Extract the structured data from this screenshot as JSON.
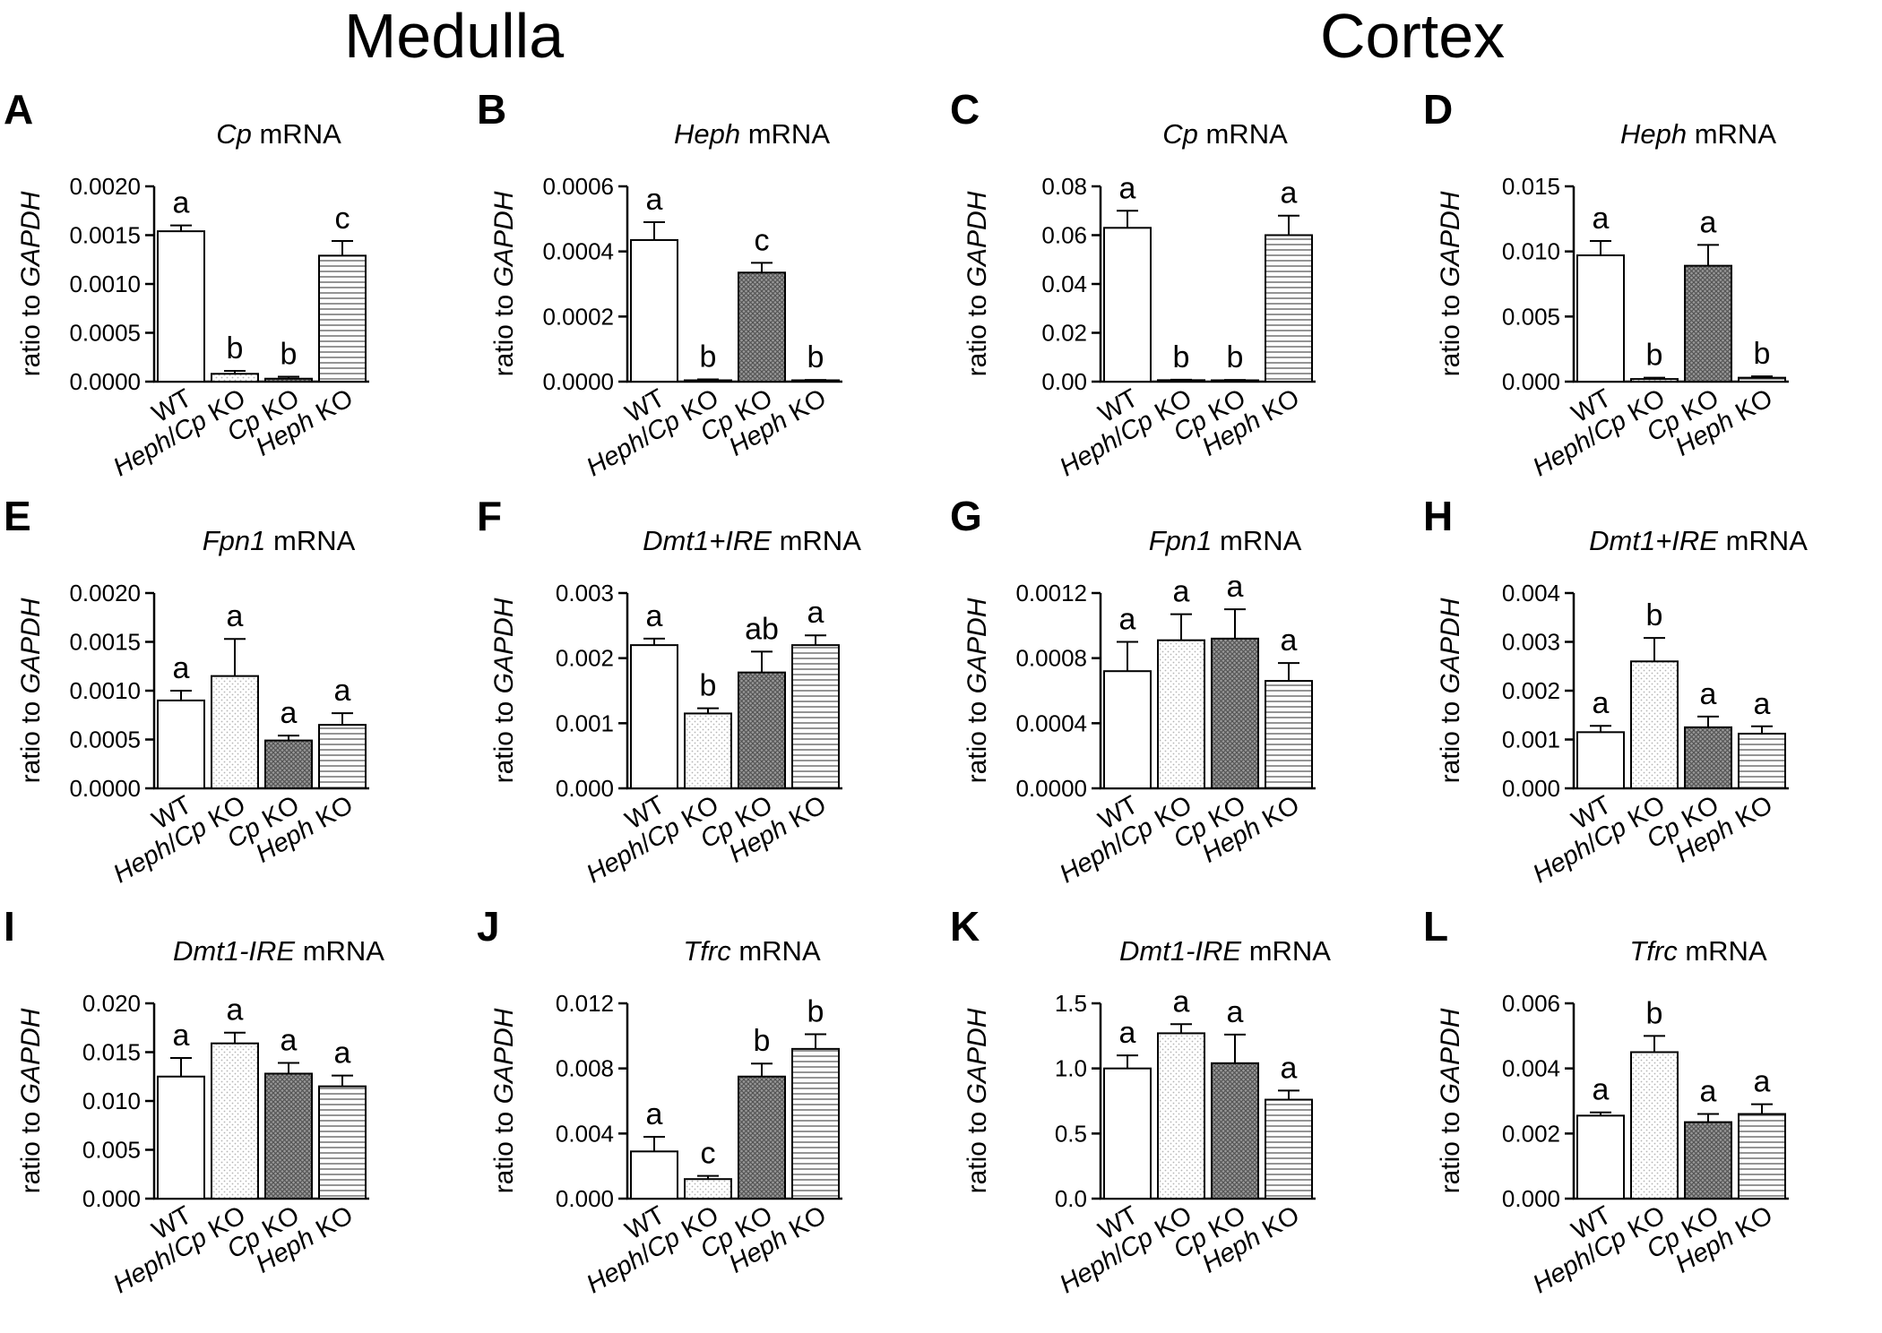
{
  "sections": [
    "Medulla",
    "Cortex"
  ],
  "y_label_prefix": "ratio to ",
  "y_label_gene": "GAPDH",
  "categories": [
    {
      "parts": [
        {
          "t": "WT",
          "i": false
        }
      ]
    },
    {
      "parts": [
        {
          "t": "Heph",
          "i": true
        },
        {
          "t": "/",
          "i": false
        },
        {
          "t": "Cp",
          "i": true
        },
        {
          "t": " KO",
          "i": false
        }
      ]
    },
    {
      "parts": [
        {
          "t": "Cp",
          "i": true
        },
        {
          "t": " KO",
          "i": false
        }
      ]
    },
    {
      "parts": [
        {
          "t": "Heph",
          "i": true
        },
        {
          "t": " KO",
          "i": false
        }
      ]
    }
  ],
  "colors": {
    "axis": "#000000",
    "bar_fill": "#ffffff",
    "dots_fill": "#b5b5b5",
    "dark_fill": "#555555",
    "hatch": "#666666"
  },
  "chart_data": [
    {
      "type": "bar",
      "panel": "A",
      "title_gene": "Cp",
      "title_suffix": " mRNA",
      "ylim": [
        0,
        0.002
      ],
      "ticks": [
        "0.0000",
        "0.0005",
        "0.0010",
        "0.0015",
        "0.0020"
      ],
      "values": [
        0.00154,
        8e-05,
        3e-05,
        0.00129
      ],
      "errors": [
        6e-05,
        3e-05,
        2e-05,
        0.00015
      ],
      "letters": [
        "a",
        "b",
        "b",
        "c"
      ]
    },
    {
      "type": "bar",
      "panel": "B",
      "title_gene": "Heph",
      "title_suffix": " mRNA",
      "ylim": [
        0,
        0.0006
      ],
      "ticks": [
        "0.0000",
        "0.0002",
        "0.0004",
        "0.0006"
      ],
      "values": [
        0.000435,
        4e-06,
        0.000335,
        3e-06
      ],
      "errors": [
        5.5e-05,
        3e-06,
        3e-05,
        2e-06
      ],
      "letters": [
        "a",
        "b",
        "c",
        "b"
      ]
    },
    {
      "type": "bar",
      "panel": "C",
      "title_gene": "Cp",
      "title_suffix": " mRNA",
      "ylim": [
        0,
        0.08
      ],
      "ticks": [
        "0.00",
        "0.02",
        "0.04",
        "0.06",
        "0.08"
      ],
      "values": [
        0.063,
        0.0006,
        0.0005,
        0.06
      ],
      "errors": [
        0.007,
        0.0002,
        0.0002,
        0.008
      ],
      "letters": [
        "a",
        "b",
        "b",
        "a"
      ]
    },
    {
      "type": "bar",
      "panel": "D",
      "title_gene": "Heph",
      "title_suffix": " mRNA",
      "ylim": [
        0,
        0.015
      ],
      "ticks": [
        "0.000",
        "0.005",
        "0.010",
        "0.015"
      ],
      "values": [
        0.0097,
        0.0002,
        0.0089,
        0.0003
      ],
      "errors": [
        0.0011,
        0.0001,
        0.0016,
        0.0001
      ],
      "letters": [
        "a",
        "b",
        "a",
        "b"
      ]
    },
    {
      "type": "bar",
      "panel": "E",
      "title_gene": "Fpn1",
      "title_suffix": " mRNA",
      "ylim": [
        0,
        0.002
      ],
      "ticks": [
        "0.0000",
        "0.0005",
        "0.0010",
        "0.0015",
        "0.0020"
      ],
      "values": [
        0.0009,
        0.00115,
        0.00049,
        0.00065
      ],
      "errors": [
        0.0001,
        0.00038,
        5e-05,
        0.00012
      ],
      "letters": [
        "a",
        "a",
        "a",
        "a"
      ]
    },
    {
      "type": "bar",
      "panel": "F",
      "title_gene": "Dmt1+IRE",
      "title_suffix": " mRNA",
      "ylim": [
        0,
        0.003
      ],
      "ticks": [
        "0.000",
        "0.001",
        "0.002",
        "0.003"
      ],
      "values": [
        0.0022,
        0.00115,
        0.00178,
        0.0022
      ],
      "errors": [
        0.0001,
        8e-05,
        0.00032,
        0.00015
      ],
      "letters": [
        "a",
        "b",
        "ab",
        "a"
      ]
    },
    {
      "type": "bar",
      "panel": "G",
      "title_gene": "Fpn1",
      "title_suffix": " mRNA",
      "ylim": [
        0,
        0.0012
      ],
      "ticks": [
        "0.0000",
        "0.0004",
        "0.0008",
        "0.0012"
      ],
      "values": [
        0.00072,
        0.00091,
        0.00092,
        0.00066
      ],
      "errors": [
        0.00018,
        0.00016,
        0.00018,
        0.00011
      ],
      "letters": [
        "a",
        "a",
        "a",
        "a"
      ]
    },
    {
      "type": "bar",
      "panel": "H",
      "title_gene": "Dmt1+IRE",
      "title_suffix": " mRNA",
      "ylim": [
        0,
        0.004
      ],
      "ticks": [
        "0.000",
        "0.001",
        "0.002",
        "0.003",
        "0.004"
      ],
      "values": [
        0.00115,
        0.0026,
        0.00125,
        0.00112
      ],
      "errors": [
        0.00013,
        0.00048,
        0.00022,
        0.00015
      ],
      "letters": [
        "a",
        "b",
        "a",
        "a"
      ]
    },
    {
      "type": "bar",
      "panel": "I",
      "title_gene": "Dmt1-IRE",
      "title_suffix": " mRNA",
      "ylim": [
        0,
        0.02
      ],
      "ticks": [
        "0.000",
        "0.005",
        "0.010",
        "0.015",
        "0.020"
      ],
      "values": [
        0.0125,
        0.0159,
        0.0128,
        0.0115
      ],
      "errors": [
        0.0019,
        0.0011,
        0.0011,
        0.0011
      ],
      "letters": [
        "a",
        "a",
        "a",
        "a"
      ]
    },
    {
      "type": "bar",
      "panel": "J",
      "title_gene": "Tfrc",
      "title_suffix": " mRNA",
      "ylim": [
        0,
        0.012
      ],
      "ticks": [
        "0.000",
        "0.004",
        "0.008",
        "0.012"
      ],
      "values": [
        0.0029,
        0.0012,
        0.0075,
        0.0092
      ],
      "errors": [
        0.0009,
        0.0002,
        0.0008,
        0.0009
      ],
      "letters": [
        "a",
        "c",
        "b",
        "b"
      ]
    },
    {
      "type": "bar",
      "panel": "K",
      "title_gene": "Dmt1-IRE",
      "title_suffix": " mRNA",
      "ylim": [
        0,
        1.5
      ],
      "ticks": [
        "0.0",
        "0.5",
        "1.0",
        "1.5"
      ],
      "values": [
        1.0,
        1.27,
        1.04,
        0.76
      ],
      "errors": [
        0.1,
        0.07,
        0.22,
        0.07
      ],
      "letters": [
        "a",
        "a",
        "a",
        "a"
      ]
    },
    {
      "type": "bar",
      "panel": "L",
      "title_gene": "Tfrc",
      "title_suffix": " mRNA",
      "ylim": [
        0,
        0.006
      ],
      "ticks": [
        "0.000",
        "0.002",
        "0.004",
        "0.006"
      ],
      "values": [
        0.00255,
        0.0045,
        0.00235,
        0.0026
      ],
      "errors": [
        0.0001,
        0.0005,
        0.00025,
        0.0003
      ],
      "letters": [
        "a",
        "b",
        "a",
        "a"
      ]
    }
  ]
}
